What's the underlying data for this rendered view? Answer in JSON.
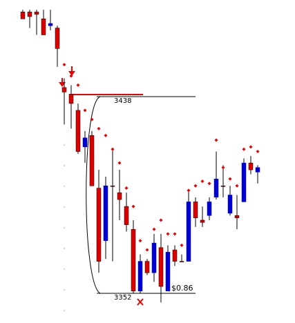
{
  "chart_data": {
    "type": "candlestick",
    "up_color": "#0000cc",
    "down_color": "#dd0000",
    "sar_color": "#ee0000",
    "high_level": 3438,
    "low_level": 3352,
    "price_label": "$0.86",
    "candles": [
      [
        3475,
        3476,
        3472,
        3472
      ],
      [
        3475,
        3476,
        3468,
        3473
      ],
      [
        3475,
        3476,
        3465,
        3474
      ],
      [
        3472,
        3476,
        3465,
        3465
      ],
      [
        3469,
        3476,
        3467,
        3470
      ],
      [
        3468,
        3469,
        3451,
        3459
      ],
      [
        3442,
        3446,
        3426,
        3440
      ],
      [
        3439,
        3443,
        3424,
        3435
      ],
      [
        3432,
        3435,
        3413,
        3414
      ],
      [
        3416,
        3423,
        3409,
        3420
      ],
      [
        3421,
        3423,
        3399,
        3399
      ],
      [
        3398,
        3406,
        3361,
        3366
      ],
      [
        3375,
        3403,
        3367,
        3399
      ],
      [
        3399,
        3415,
        3366,
        3399
      ],
      [
        3396,
        3406,
        3384,
        3393
      ],
      [
        3390,
        3396,
        3379,
        3382
      ],
      [
        3380,
        3384,
        3352,
        3353
      ],
      [
        3353,
        3369,
        3352,
        3366
      ],
      [
        3366,
        3367,
        3360,
        3361
      ],
      [
        3361,
        3378,
        3357,
        3374
      ],
      [
        3372,
        3378,
        3348,
        3355
      ],
      [
        3353,
        3373,
        3353,
        3370
      ],
      [
        3371,
        3373,
        3364,
        3366
      ],
      [
        3366,
        3369,
        3366,
        3366
      ],
      [
        3366,
        3397,
        3366,
        3392
      ],
      [
        3392,
        3394,
        3381,
        3385
      ],
      [
        3384,
        3390,
        3381,
        3383
      ],
      [
        3386,
        3394,
        3384,
        3392
      ],
      [
        3394,
        3414,
        3393,
        3402
      ],
      [
        3399,
        3408,
        3394,
        3399
      ],
      [
        3387,
        3399,
        3386,
        3395
      ],
      [
        3386,
        3395,
        3380,
        3385
      ],
      [
        3392,
        3411,
        3392,
        3409
      ],
      [
        3409,
        3412,
        3404,
        3406
      ],
      [
        3405,
        3408,
        3400,
        3407
      ]
    ],
    "sar": [
      null,
      null,
      null,
      null,
      null,
      null,
      3452,
      3447,
      3443,
      3432,
      3428,
      3424,
      3421,
      3415,
      3409,
      3398,
      3390,
      3375,
      3371,
      3380,
      3384,
      3378,
      3378,
      3373,
      3397,
      3399,
      3401,
      3400,
      3419,
      3407,
      3402,
      3399,
      3415,
      3416,
      3414
    ]
  }
}
